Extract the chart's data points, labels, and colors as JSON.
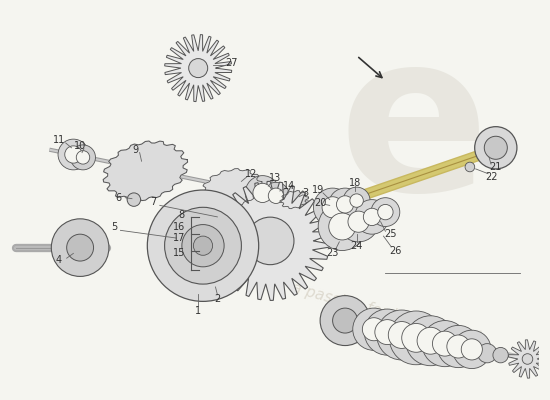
{
  "bg_color": "#f5f5f0",
  "line_color": "#555555",
  "fill_light": "#e8e8e8",
  "fill_mid": "#d8d8d8",
  "fill_dark": "#c0c0c0",
  "shaft_yellow": "#d4c870",
  "watermark_color1": "#c8c0b0",
  "watermark_color2": "#b0a890",
  "arrow_color": "#333333",
  "label_color": "#333333",
  "leader_color": "#666666",
  "fig_w": 5.5,
  "fig_h": 4.0,
  "dpi": 100
}
